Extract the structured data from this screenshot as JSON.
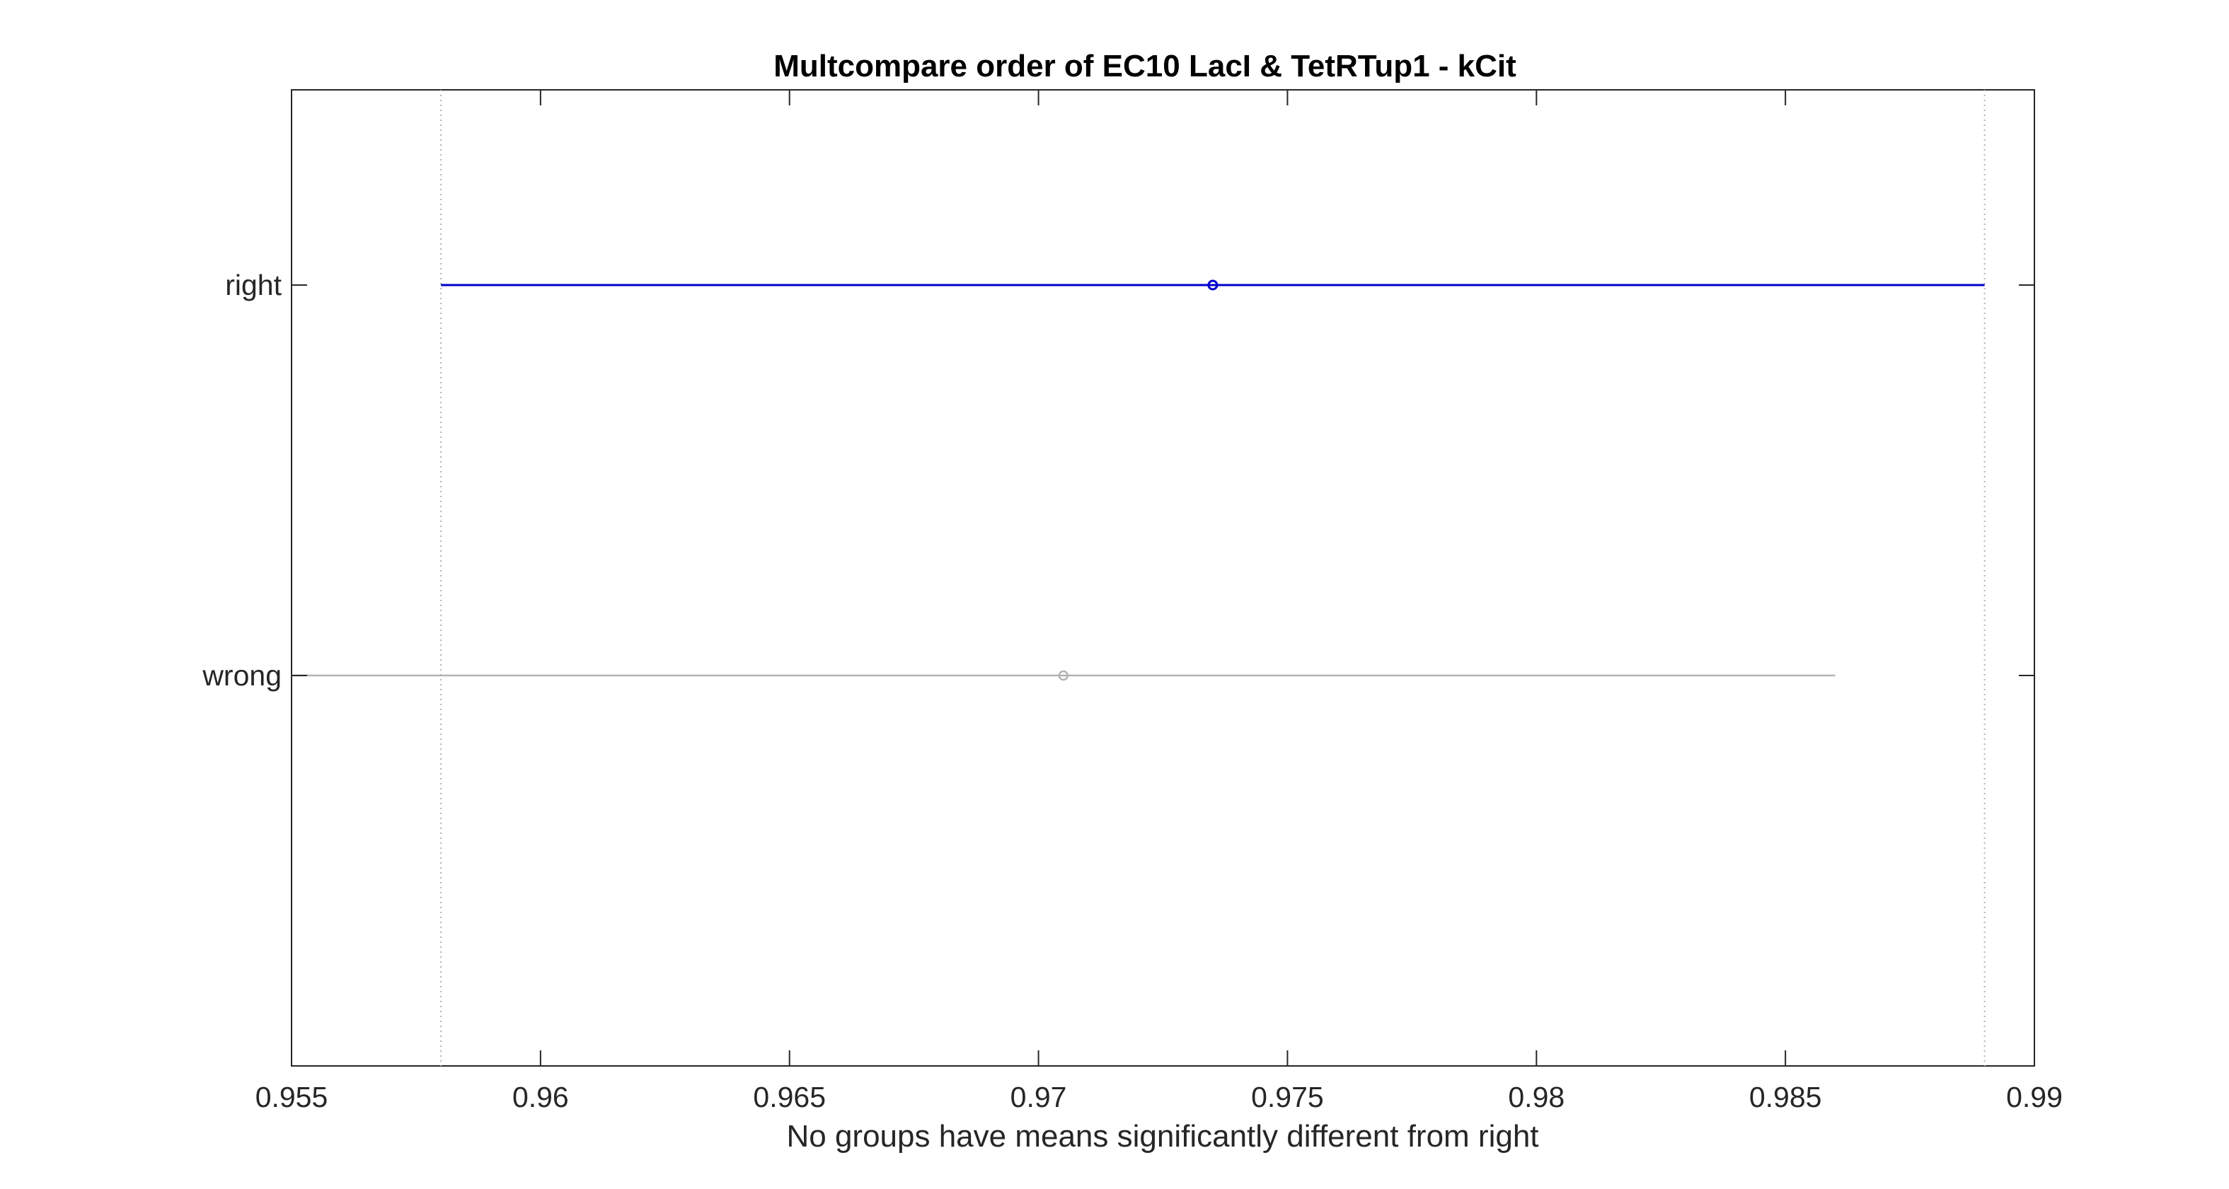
{
  "chart_data": {
    "type": "errorbar",
    "title": "Multcompare order of EC10 LacI & TetRTup1 - kCit",
    "xlabel": "No groups have means significantly different from right",
    "ylabel": "",
    "xlim": [
      0.955,
      0.99
    ],
    "xticks": [
      0.955,
      0.96,
      0.965,
      0.97,
      0.975,
      0.98,
      0.985,
      0.99
    ],
    "xtick_labels": [
      "0.955",
      "0.96",
      "0.965",
      "0.97",
      "0.975",
      "0.98",
      "0.985",
      "0.99"
    ],
    "grid": false,
    "reference_lines": [
      0.958,
      0.989
    ],
    "groups": [
      {
        "name": "right",
        "mean": 0.9735,
        "lower": 0.958,
        "upper": 0.989,
        "color": "#0000cc",
        "selected": true
      },
      {
        "name": "wrong",
        "mean": 0.9705,
        "lower": 0.955,
        "upper": 0.986,
        "color": "#b3b3b3",
        "selected": false
      }
    ]
  }
}
